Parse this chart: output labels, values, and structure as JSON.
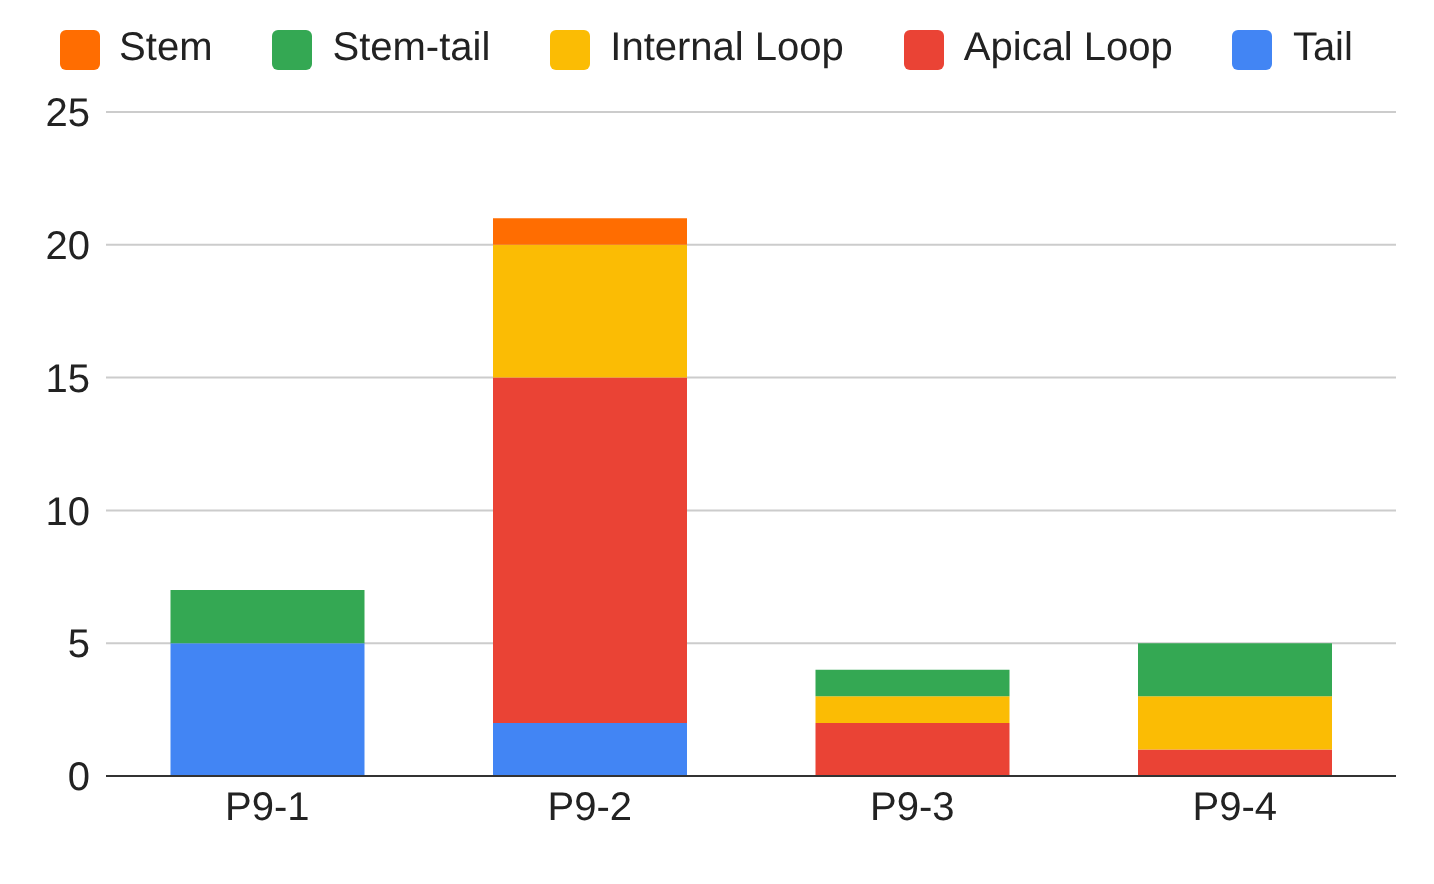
{
  "chart_data": {
    "type": "bar",
    "stacked": true,
    "categories": [
      "P9-1",
      "P9-2",
      "P9-3",
      "P9-4"
    ],
    "series": [
      {
        "name": "Tail",
        "color": "#4285f4",
        "values": [
          5,
          2,
          0,
          0
        ]
      },
      {
        "name": "Apical Loop",
        "color": "#ea4335",
        "values": [
          0,
          13,
          2,
          1
        ]
      },
      {
        "name": "Internal Loop",
        "color": "#fbbc04",
        "values": [
          0,
          5,
          1,
          2
        ]
      },
      {
        "name": "Stem-tail",
        "color": "#34a853",
        "values": [
          2,
          0,
          1,
          2
        ]
      },
      {
        "name": "Stem",
        "color": "#ff6d01",
        "values": [
          0,
          1,
          0,
          0
        ]
      }
    ],
    "ylim": [
      0,
      25
    ],
    "yticks": [
      0,
      5,
      10,
      15,
      20,
      25
    ],
    "grid": "y",
    "legend": "top"
  }
}
